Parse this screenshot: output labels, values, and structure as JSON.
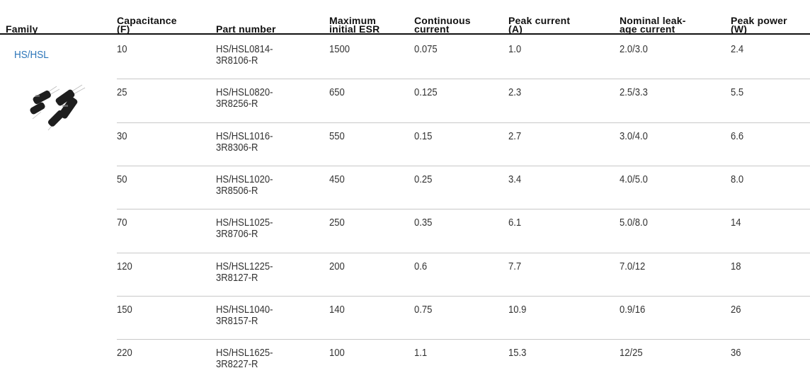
{
  "table": {
    "headers": [
      "Family",
      "Capacitance\n(F)",
      "Part number",
      "Maximum\ninitial ESR",
      "Continuous\ncurrent",
      "Peak current\n(A)",
      "Nominal leak-\nage current",
      "Peak power\n(W)"
    ],
    "family": "HS/HSL",
    "rows": [
      [
        "10",
        "HS/HSL0814-\n3R8106-R",
        "1500",
        "0.075",
        "1.0",
        "2.0/3.0",
        "2.4"
      ],
      [
        "25",
        "HS/HSL0820-\n3R8256-R",
        "650",
        "0.125",
        "2.3",
        "2.5/3.3",
        "5.5"
      ],
      [
        "30",
        "HS/HSL1016-\n3R8306-R",
        "550",
        "0.15",
        "2.7",
        "3.0/4.0",
        "6.6"
      ],
      [
        "50",
        "HS/HSL1020-\n3R8506-R",
        "450",
        "0.25",
        "3.4",
        "4.0/5.0",
        "8.0"
      ],
      [
        "70",
        "HS/HSL1025-\n3R8706-R",
        "250",
        "0.35",
        "6.1",
        "5.0/8.0",
        "14"
      ],
      [
        "120",
        "HS/HSL1225-\n3R8127-R",
        "200",
        "0.6",
        "7.7",
        "7.0/12",
        "18"
      ],
      [
        "150",
        "HS/HSL1040-\n3R8157-R",
        "140",
        "0.75",
        "10.9",
        "0.9/16",
        "26"
      ],
      [
        "220",
        "HS/HSL1625-\n3R8227-R",
        "100",
        "1.1",
        "15.3",
        "12/25",
        "36"
      ]
    ]
  }
}
